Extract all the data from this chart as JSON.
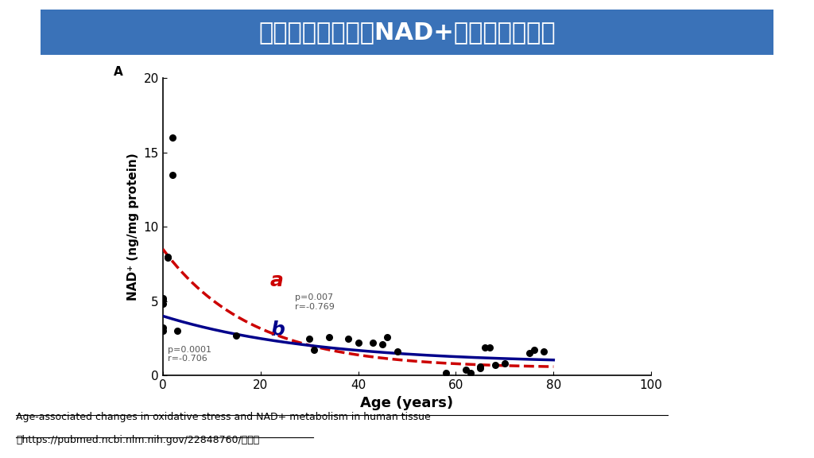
{
  "title": "加齢による体内のNAD+の減少について",
  "title_bg_color": "#3a72b8",
  "title_text_color": "#ffffff",
  "xlabel": "Age (years)",
  "ylabel": "NAD⁺ (ng/mg protein)",
  "panel_label": "A",
  "scatter_x": [
    0,
    0,
    0,
    0,
    0,
    1,
    1,
    2,
    2,
    3,
    15,
    30,
    31,
    34,
    38,
    40,
    43,
    45,
    46,
    48,
    58,
    62,
    63,
    65,
    65,
    66,
    67,
    68,
    70,
    75,
    76,
    78
  ],
  "scatter_y": [
    5.1,
    4.8,
    3.2,
    3.0,
    5.2,
    8.0,
    7.9,
    16.0,
    13.5,
    3.0,
    2.7,
    2.5,
    1.7,
    2.6,
    2.5,
    2.2,
    2.2,
    2.1,
    2.6,
    1.6,
    0.2,
    0.4,
    0.2,
    0.5,
    0.6,
    1.9,
    1.9,
    0.7,
    0.8,
    1.5,
    1.7,
    1.6
  ],
  "xlim": [
    0,
    100
  ],
  "ylim": [
    0,
    20
  ],
  "xticks": [
    0,
    20,
    40,
    60,
    80,
    100
  ],
  "yticks": [
    0,
    5,
    10,
    15,
    20
  ],
  "curve_a_color": "#cc0000",
  "curve_b_color": "#00008b",
  "curve_a_label": "a",
  "curve_b_label": "b",
  "curve_a_stats": "p=0.007\nr=-0.769",
  "curve_b_stats": "p=0.0001\nr=-0.706",
  "footnote_line1": "Age-associated changes in oxidative stress and NAD+ metabolism in human tissue",
  "footnote_line2": "（https://pubmed.ncbi.nlm.nih.gov/22848760/）より"
}
